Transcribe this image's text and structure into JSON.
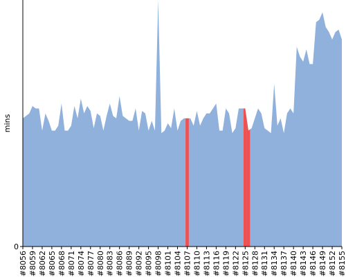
{
  "chart_data": {
    "type": "area",
    "y_label": "mins",
    "categories": [
      "#8056",
      null,
      null,
      "#8059",
      null,
      null,
      "#8062",
      null,
      null,
      "#8065",
      null,
      null,
      "#8068",
      null,
      null,
      "#8071",
      null,
      null,
      "#8074",
      null,
      null,
      "#8077",
      null,
      null,
      "#8080",
      null,
      null,
      "#8083",
      null,
      null,
      "#8086",
      null,
      null,
      "#8089",
      null,
      null,
      "#8092",
      null,
      null,
      "#8095",
      null,
      null,
      "#8098",
      null,
      null,
      "#8101",
      null,
      null,
      "#8104",
      null,
      null,
      "#8107",
      null,
      null,
      "#8110",
      null,
      null,
      "#8113",
      null,
      null,
      "#8116",
      null,
      null,
      "#8119",
      null,
      null,
      "#8122",
      null,
      null,
      "#8125",
      null,
      null,
      "#8128",
      null,
      null,
      "#8131",
      null,
      null,
      "#8134",
      null,
      null,
      "#8137",
      null,
      null,
      "#8140",
      null,
      null,
      "#8143",
      null,
      null,
      "#8146",
      null,
      null,
      "#8149",
      null,
      null,
      "#8152",
      null,
      null,
      "#8155"
    ],
    "values": [
      52,
      53,
      54,
      57,
      56,
      56,
      47,
      54,
      51,
      47,
      47,
      49,
      58,
      47,
      47,
      49,
      57,
      52,
      60,
      54,
      57,
      55,
      48,
      54,
      53,
      47,
      53,
      58,
      53,
      52,
      61,
      53,
      52,
      51,
      51,
      56,
      47,
      55,
      54,
      47,
      51,
      47,
      100,
      46,
      47,
      50,
      48,
      56,
      47,
      51,
      52,
      52,
      52,
      49,
      55,
      49,
      52,
      54,
      54,
      56,
      58,
      47,
      47,
      56,
      54,
      46,
      48,
      56,
      56,
      56,
      47,
      48,
      52,
      56,
      54,
      48,
      47,
      46,
      66,
      49,
      52,
      46,
      54,
      56,
      54,
      81,
      77,
      75,
      80,
      74,
      74,
      91,
      92,
      95,
      89,
      87,
      84,
      87,
      88,
      84
    ],
    "color": "#8fb1db",
    "highlight_color": "#f05050",
    "highlight_points": [
      51,
      69,
      70
    ],
    "ylim": [
      0,
      100
    ],
    "yticks": [
      0
    ]
  }
}
